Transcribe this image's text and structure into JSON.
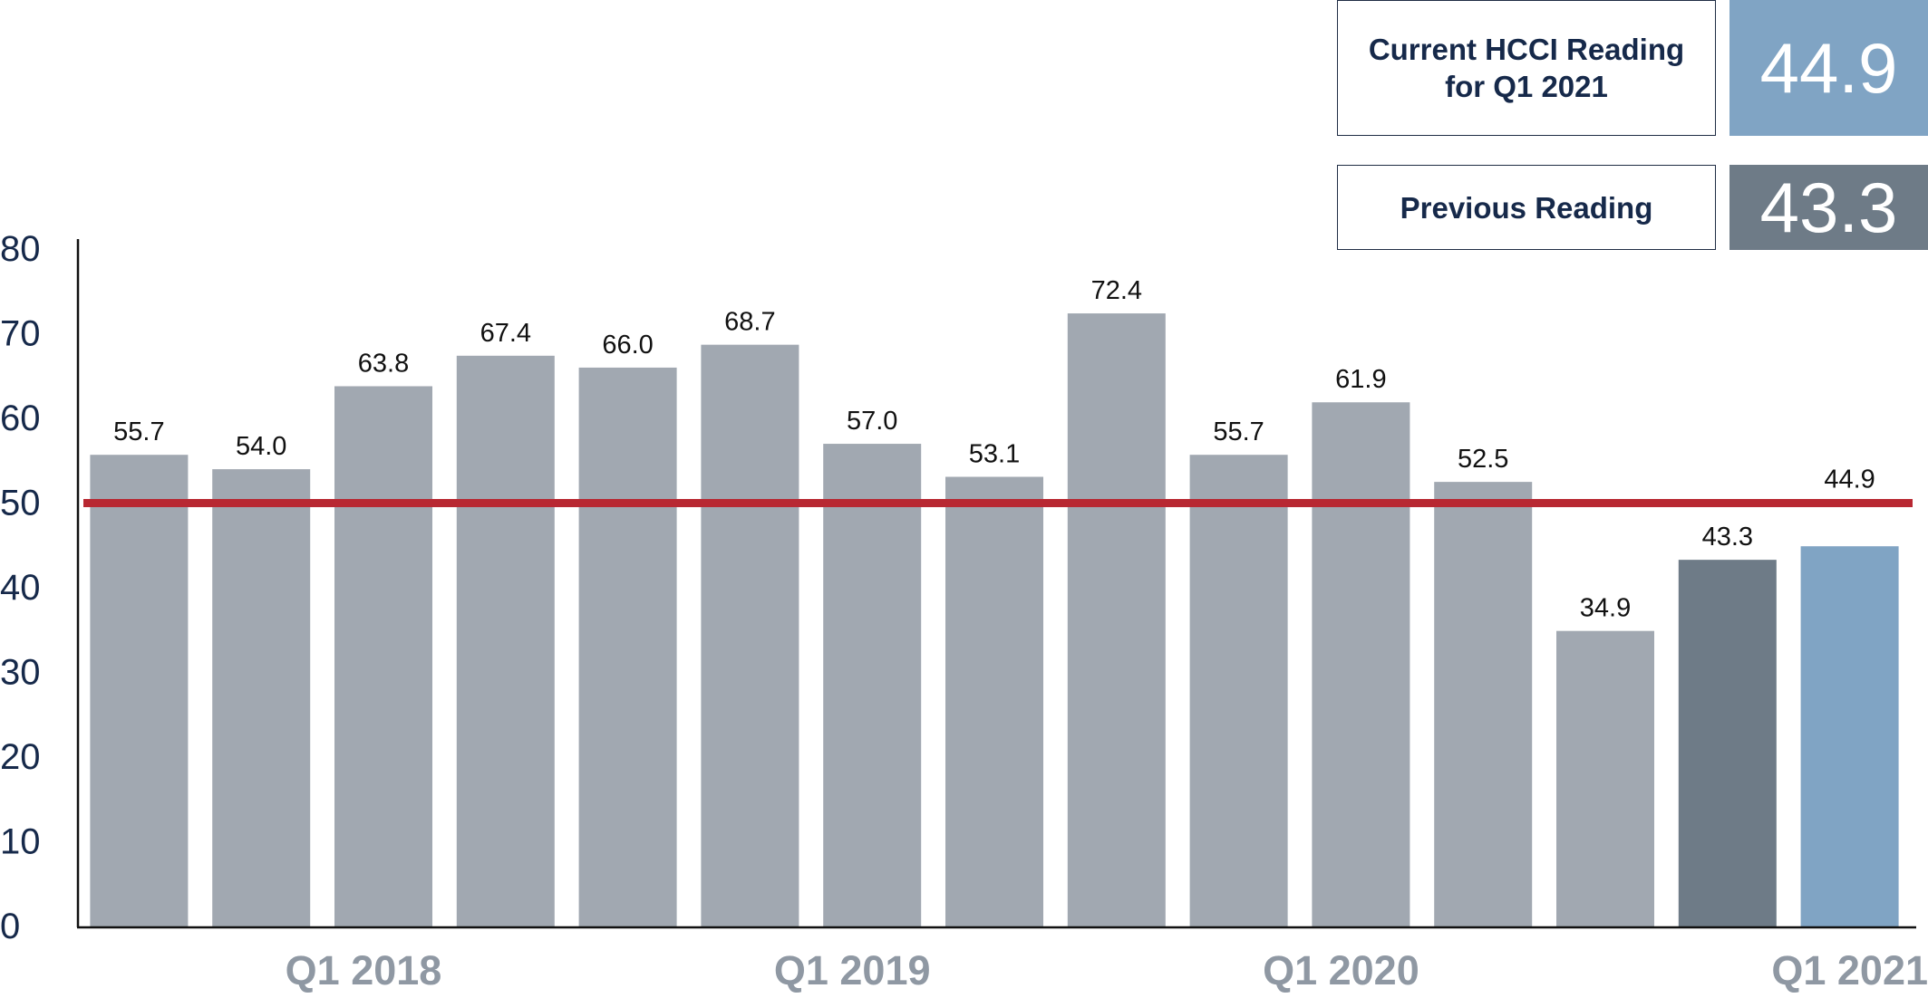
{
  "reading_panel": {
    "current_label_line1": "Current HCCI Reading",
    "current_label_line2": "for Q1 2021",
    "current_value": "44.9",
    "previous_label": "Previous Reading",
    "previous_value": "43.3"
  },
  "colors": {
    "default_bar": "#a1a8b1",
    "previous_bar": "#6e7b87",
    "current_bar": "#80a4c4",
    "threshold_line": "#b82832",
    "axis_text": "#16294a",
    "period_label": "#8f98a3",
    "value_label": "#111111"
  },
  "chart_data": {
    "type": "bar",
    "values": [
      55.7,
      54.0,
      63.8,
      67.4,
      66.0,
      68.7,
      57.0,
      53.1,
      72.4,
      55.7,
      61.9,
      52.5,
      34.9,
      43.3,
      44.9
    ],
    "value_labels": [
      "55.7",
      "54.0",
      "63.8",
      "67.4",
      "66.0",
      "68.7",
      "57.0",
      "53.1",
      "72.4",
      "55.7",
      "61.9",
      "52.5",
      "34.9",
      "43.3",
      "44.9"
    ],
    "bar_styles": [
      "default",
      "default",
      "default",
      "default",
      "default",
      "default",
      "default",
      "default",
      "default",
      "default",
      "default",
      "default",
      "default",
      "previous",
      "current"
    ],
    "period_labels": [
      {
        "index": 2,
        "text": "Q1 2018"
      },
      {
        "index": 6,
        "text": "Q1 2019"
      },
      {
        "index": 10,
        "text": "Q1 2020"
      },
      {
        "index": 14,
        "text": "Q1 2021"
      }
    ],
    "yticks": [
      0,
      10,
      20,
      30,
      40,
      50,
      60,
      70,
      80
    ],
    "ylim": [
      0,
      80
    ],
    "reference_line": 50,
    "grid": false,
    "legend": "none"
  }
}
